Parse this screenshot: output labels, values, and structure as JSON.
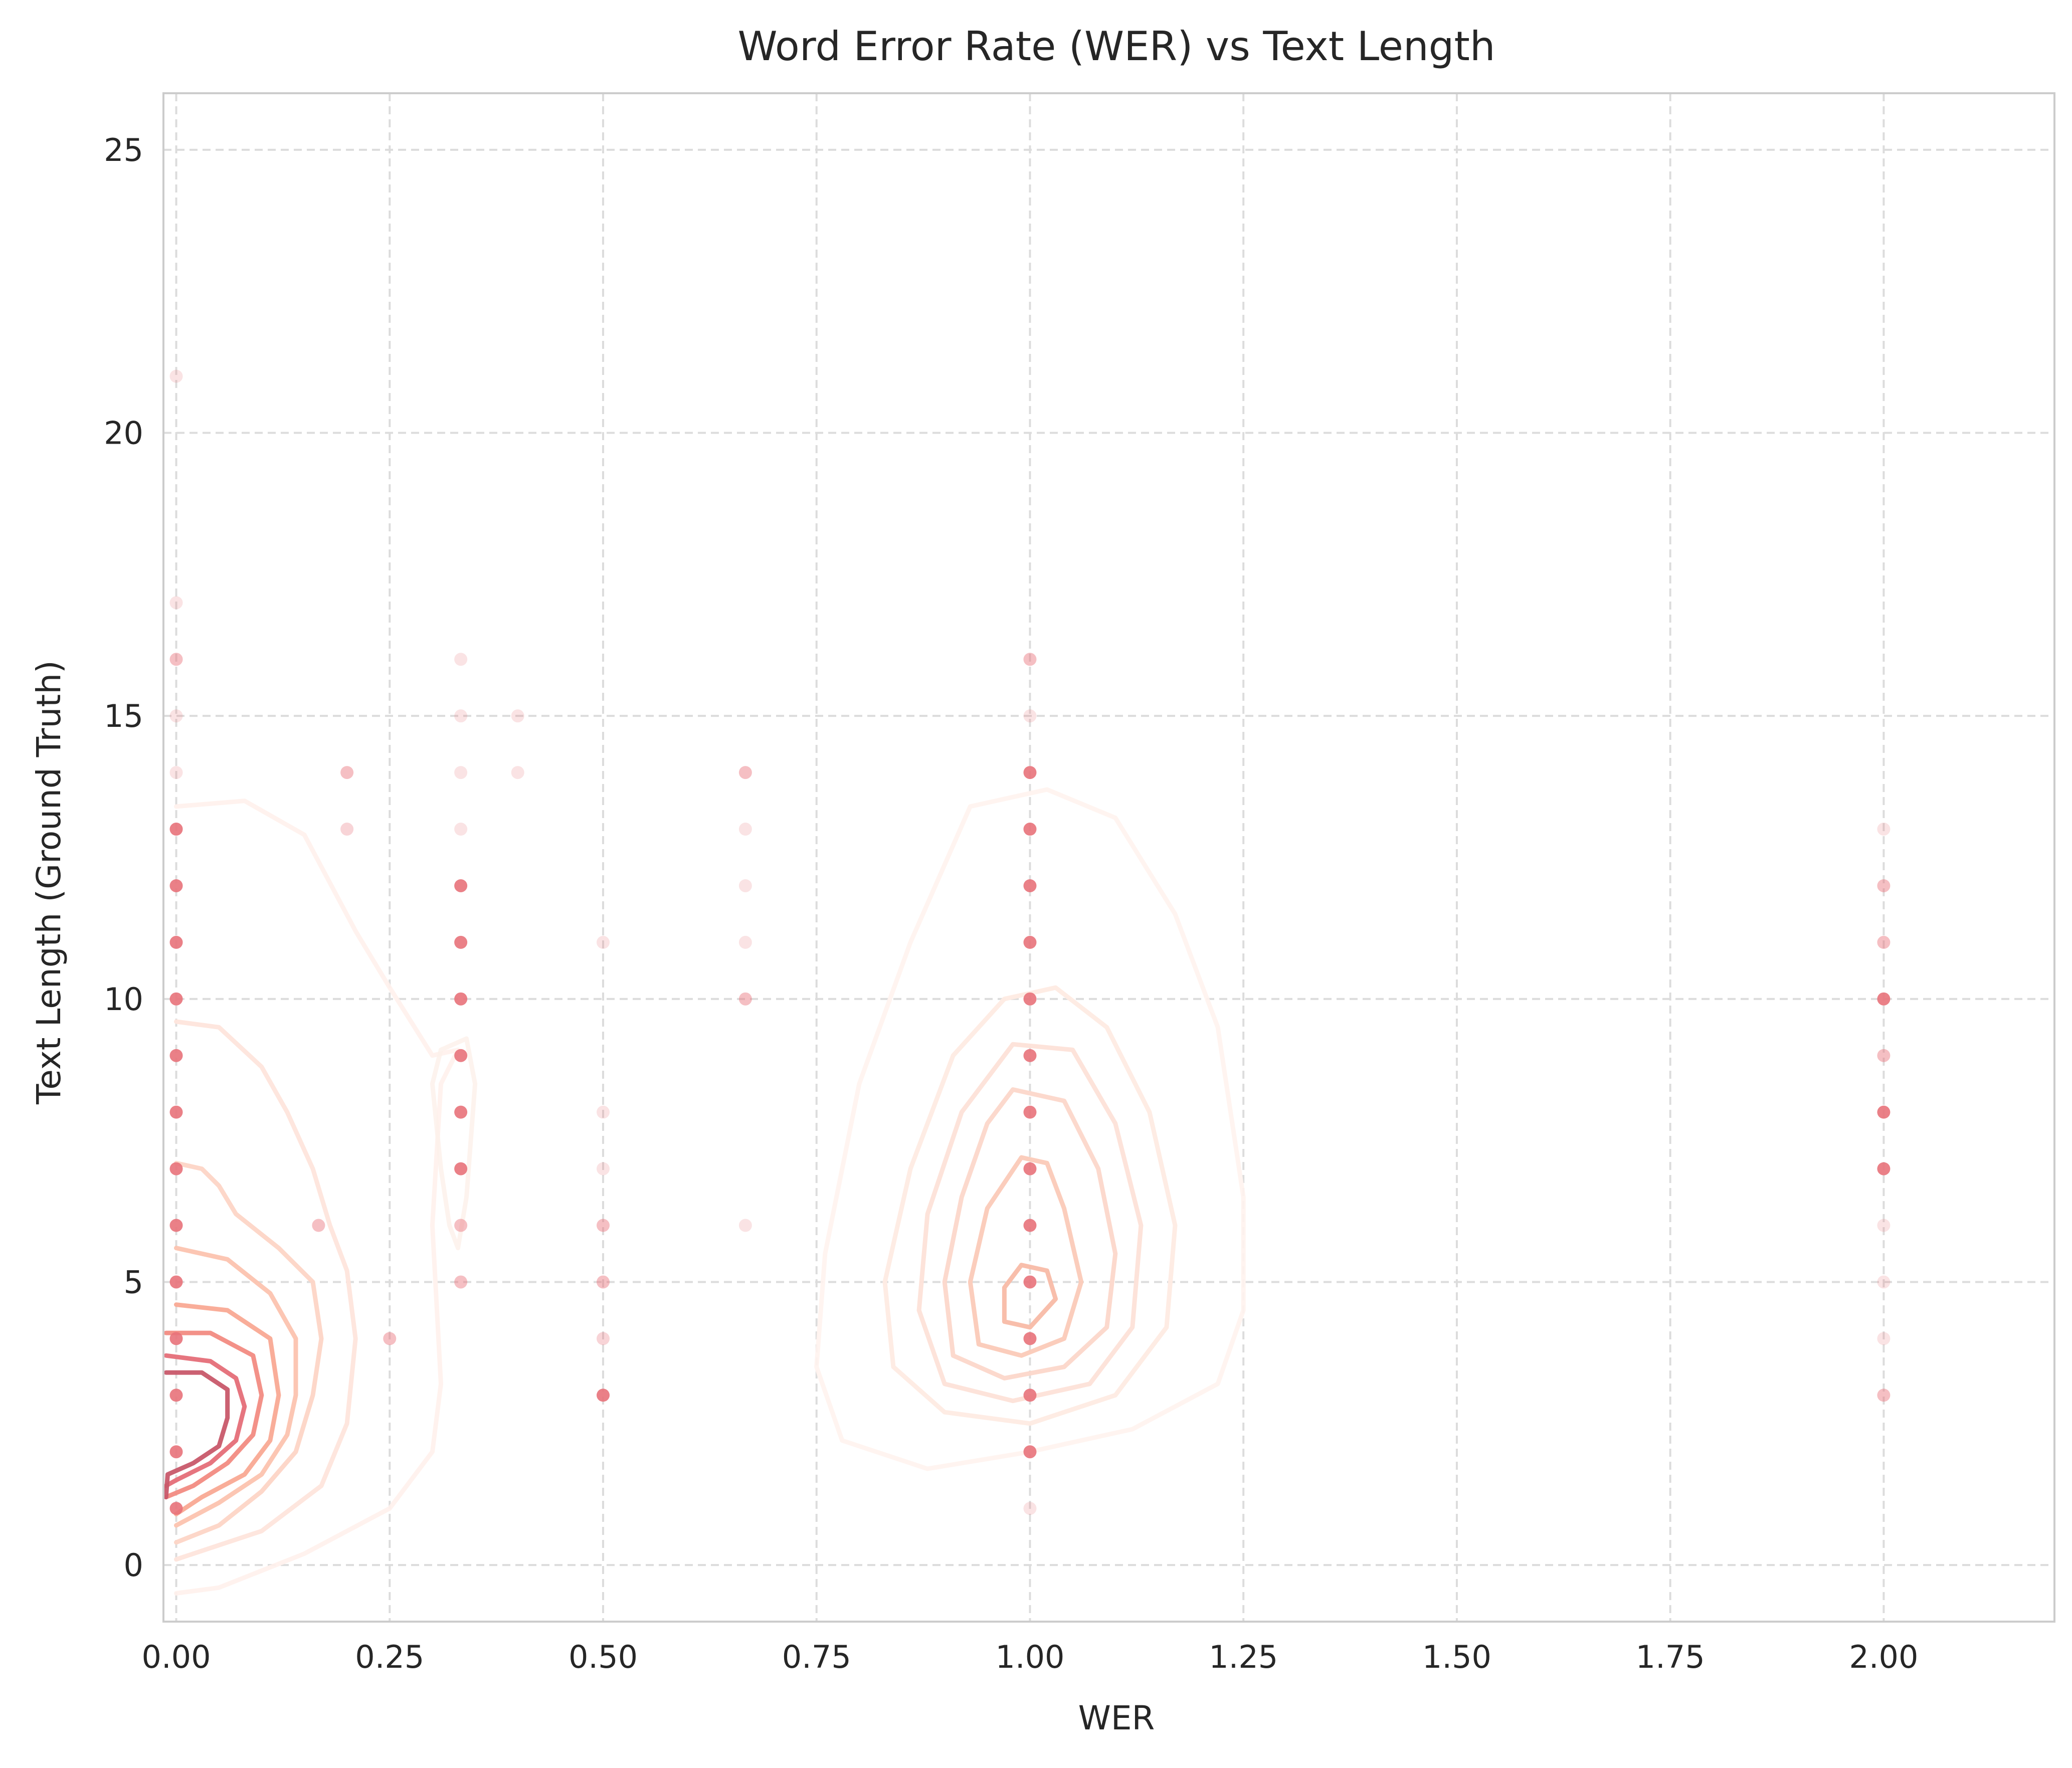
{
  "chart_data": {
    "type": "scatter",
    "title": "Word Error Rate (WER) vs Text Length",
    "xlabel": "WER",
    "ylabel": "Text Length (Ground Truth)",
    "xlim": [
      -0.015,
      2.2
    ],
    "ylim": [
      -1,
      26
    ],
    "xticks": [
      0.0,
      0.25,
      0.5,
      0.75,
      1.0,
      1.25,
      1.5,
      1.75,
      2.0
    ],
    "xtick_labels": [
      "0.00",
      "0.25",
      "0.50",
      "0.75",
      "1.00",
      "1.25",
      "1.50",
      "1.75",
      "2.00"
    ],
    "yticks": [
      0,
      5,
      10,
      15,
      20,
      25
    ],
    "ytick_labels": [
      "0",
      "5",
      "10",
      "15",
      "20",
      "25"
    ],
    "grid": true,
    "grid_style": "dashed",
    "point_color": "#e8727a",
    "points": [
      {
        "x": 0.0,
        "y": 21,
        "alpha": 0.2
      },
      {
        "x": 0.0,
        "y": 17,
        "alpha": 0.2
      },
      {
        "x": 0.0,
        "y": 16,
        "alpha": 0.45
      },
      {
        "x": 0.0,
        "y": 15,
        "alpha": 0.2
      },
      {
        "x": 0.0,
        "y": 14,
        "alpha": 0.2
      },
      {
        "x": 0.0,
        "y": 13,
        "alpha": 0.9
      },
      {
        "x": 0.0,
        "y": 12,
        "alpha": 0.9
      },
      {
        "x": 0.0,
        "y": 11,
        "alpha": 0.9
      },
      {
        "x": 0.0,
        "y": 10,
        "alpha": 0.9
      },
      {
        "x": 0.0,
        "y": 9,
        "alpha": 0.9
      },
      {
        "x": 0.0,
        "y": 8,
        "alpha": 0.9
      },
      {
        "x": 0.0,
        "y": 7,
        "alpha": 0.9
      },
      {
        "x": 0.0,
        "y": 6,
        "alpha": 0.9
      },
      {
        "x": 0.0,
        "y": 5,
        "alpha": 0.9
      },
      {
        "x": 0.0,
        "y": 4,
        "alpha": 0.9
      },
      {
        "x": 0.0,
        "y": 3,
        "alpha": 0.9
      },
      {
        "x": 0.0,
        "y": 2,
        "alpha": 0.9
      },
      {
        "x": 0.0,
        "y": 1,
        "alpha": 0.9
      },
      {
        "x": 0.1667,
        "y": 6,
        "alpha": 0.45
      },
      {
        "x": 0.2,
        "y": 14,
        "alpha": 0.45
      },
      {
        "x": 0.2,
        "y": 13,
        "alpha": 0.3
      },
      {
        "x": 0.25,
        "y": 4,
        "alpha": 0.45
      },
      {
        "x": 0.3333,
        "y": 16,
        "alpha": 0.2
      },
      {
        "x": 0.3333,
        "y": 15,
        "alpha": 0.2
      },
      {
        "x": 0.3333,
        "y": 14,
        "alpha": 0.2
      },
      {
        "x": 0.3333,
        "y": 13,
        "alpha": 0.2
      },
      {
        "x": 0.3333,
        "y": 12,
        "alpha": 0.9
      },
      {
        "x": 0.3333,
        "y": 11,
        "alpha": 0.9
      },
      {
        "x": 0.3333,
        "y": 10,
        "alpha": 0.9
      },
      {
        "x": 0.3333,
        "y": 9,
        "alpha": 0.9
      },
      {
        "x": 0.3333,
        "y": 8,
        "alpha": 0.9
      },
      {
        "x": 0.3333,
        "y": 7,
        "alpha": 0.9
      },
      {
        "x": 0.3333,
        "y": 6,
        "alpha": 0.45
      },
      {
        "x": 0.3333,
        "y": 5,
        "alpha": 0.45
      },
      {
        "x": 0.4,
        "y": 15,
        "alpha": 0.2
      },
      {
        "x": 0.4,
        "y": 14,
        "alpha": 0.2
      },
      {
        "x": 0.5,
        "y": 11,
        "alpha": 0.2
      },
      {
        "x": 0.5,
        "y": 8,
        "alpha": 0.2
      },
      {
        "x": 0.5,
        "y": 7,
        "alpha": 0.2
      },
      {
        "x": 0.5,
        "y": 6,
        "alpha": 0.45
      },
      {
        "x": 0.5,
        "y": 5,
        "alpha": 0.45
      },
      {
        "x": 0.5,
        "y": 4,
        "alpha": 0.3
      },
      {
        "x": 0.5,
        "y": 3,
        "alpha": 0.9
      },
      {
        "x": 0.6667,
        "y": 14,
        "alpha": 0.45
      },
      {
        "x": 0.6667,
        "y": 13,
        "alpha": 0.2
      },
      {
        "x": 0.6667,
        "y": 12,
        "alpha": 0.2
      },
      {
        "x": 0.6667,
        "y": 11,
        "alpha": 0.2
      },
      {
        "x": 0.6667,
        "y": 10,
        "alpha": 0.45
      },
      {
        "x": 0.6667,
        "y": 6,
        "alpha": 0.2
      },
      {
        "x": 1.0,
        "y": 16,
        "alpha": 0.45
      },
      {
        "x": 1.0,
        "y": 15,
        "alpha": 0.2
      },
      {
        "x": 1.0,
        "y": 14,
        "alpha": 0.9
      },
      {
        "x": 1.0,
        "y": 13,
        "alpha": 0.9
      },
      {
        "x": 1.0,
        "y": 12,
        "alpha": 0.9
      },
      {
        "x": 1.0,
        "y": 11,
        "alpha": 0.9
      },
      {
        "x": 1.0,
        "y": 10,
        "alpha": 0.9
      },
      {
        "x": 1.0,
        "y": 9,
        "alpha": 0.9
      },
      {
        "x": 1.0,
        "y": 8,
        "alpha": 0.9
      },
      {
        "x": 1.0,
        "y": 7,
        "alpha": 0.9
      },
      {
        "x": 1.0,
        "y": 6,
        "alpha": 0.9
      },
      {
        "x": 1.0,
        "y": 5,
        "alpha": 0.9
      },
      {
        "x": 1.0,
        "y": 4,
        "alpha": 0.9
      },
      {
        "x": 1.0,
        "y": 3,
        "alpha": 0.9
      },
      {
        "x": 1.0,
        "y": 2,
        "alpha": 0.9
      },
      {
        "x": 1.0,
        "y": 1,
        "alpha": 0.2
      },
      {
        "x": 2.0,
        "y": 13,
        "alpha": 0.2
      },
      {
        "x": 2.0,
        "y": 12,
        "alpha": 0.45
      },
      {
        "x": 2.0,
        "y": 11,
        "alpha": 0.45
      },
      {
        "x": 2.0,
        "y": 10,
        "alpha": 0.9
      },
      {
        "x": 2.0,
        "y": 9,
        "alpha": 0.45
      },
      {
        "x": 2.0,
        "y": 8,
        "alpha": 0.9
      },
      {
        "x": 2.0,
        "y": 7,
        "alpha": 0.9
      },
      {
        "x": 2.0,
        "y": 6,
        "alpha": 0.2
      },
      {
        "x": 2.0,
        "y": 5,
        "alpha": 0.2
      },
      {
        "x": 2.0,
        "y": 4,
        "alpha": 0.2
      },
      {
        "x": 2.0,
        "y": 3,
        "alpha": 0.45
      }
    ],
    "density_contours": [
      {
        "color": "#fff1ec",
        "opacity": 0.9,
        "points": [
          [
            0.0,
            13.4
          ],
          [
            0.08,
            13.5
          ],
          [
            0.15,
            12.9
          ],
          [
            0.21,
            11.2
          ],
          [
            0.25,
            10.2
          ],
          [
            0.3,
            9.0
          ],
          [
            0.33,
            9.1
          ],
          [
            0.31,
            8.5
          ],
          [
            0.3,
            6.0
          ],
          [
            0.31,
            3.2
          ],
          [
            0.3,
            2.0
          ],
          [
            0.25,
            1.0
          ],
          [
            0.15,
            0.2
          ],
          [
            0.05,
            -0.4
          ],
          [
            0.0,
            -0.5
          ]
        ]
      },
      {
        "color": "#fdf0ea",
        "opacity": 0.8,
        "points": [
          [
            0.34,
            9.3
          ],
          [
            0.31,
            9.1
          ],
          [
            0.3,
            8.5
          ],
          [
            0.31,
            7.0
          ],
          [
            0.32,
            6.0
          ],
          [
            0.33,
            5.6
          ],
          [
            0.34,
            6.5
          ],
          [
            0.35,
            8.5
          ],
          [
            0.34,
            9.3
          ]
        ]
      },
      {
        "color": "#fee5dc",
        "opacity": 0.95,
        "points": [
          [
            0.0,
            9.6
          ],
          [
            0.05,
            9.5
          ],
          [
            0.1,
            8.8
          ],
          [
            0.13,
            8.0
          ],
          [
            0.16,
            7.0
          ],
          [
            0.18,
            6.0
          ],
          [
            0.2,
            5.2
          ],
          [
            0.21,
            4.0
          ],
          [
            0.2,
            2.5
          ],
          [
            0.17,
            1.4
          ],
          [
            0.1,
            0.6
          ],
          [
            0.0,
            0.1
          ]
        ]
      },
      {
        "color": "#fdd5c6",
        "opacity": 0.95,
        "points": [
          [
            0.0,
            7.1
          ],
          [
            0.03,
            7.0
          ],
          [
            0.05,
            6.7
          ],
          [
            0.07,
            6.2
          ],
          [
            0.12,
            5.6
          ],
          [
            0.16,
            5.0
          ],
          [
            0.17,
            4.0
          ],
          [
            0.16,
            3.0
          ],
          [
            0.14,
            2.0
          ],
          [
            0.1,
            1.3
          ],
          [
            0.05,
            0.7
          ],
          [
            0.0,
            0.4
          ]
        ]
      },
      {
        "color": "#fcc3af",
        "opacity": 0.95,
        "points": [
          [
            0.0,
            5.6
          ],
          [
            0.06,
            5.4
          ],
          [
            0.11,
            4.8
          ],
          [
            0.14,
            4.0
          ],
          [
            0.14,
            3.0
          ],
          [
            0.13,
            2.3
          ],
          [
            0.1,
            1.6
          ],
          [
            0.05,
            1.1
          ],
          [
            0.0,
            0.7
          ]
        ]
      },
      {
        "color": "#f9a994",
        "opacity": 0.95,
        "points": [
          [
            0.0,
            4.6
          ],
          [
            0.06,
            4.5
          ],
          [
            0.11,
            4.0
          ],
          [
            0.12,
            3.0
          ],
          [
            0.11,
            2.2
          ],
          [
            0.08,
            1.6
          ],
          [
            0.03,
            1.2
          ],
          [
            0.0,
            0.9
          ]
        ]
      },
      {
        "color": "#f28b82",
        "opacity": 0.95,
        "points": [
          [
            -0.012,
            4.1
          ],
          [
            0.04,
            4.1
          ],
          [
            0.09,
            3.7
          ],
          [
            0.1,
            3.0
          ],
          [
            0.09,
            2.3
          ],
          [
            0.06,
            1.8
          ],
          [
            0.02,
            1.4
          ],
          [
            -0.012,
            1.2
          ]
        ]
      },
      {
        "color": "#e56e78",
        "opacity": 0.95,
        "points": [
          [
            -0.012,
            3.7
          ],
          [
            0.04,
            3.6
          ],
          [
            0.07,
            3.3
          ],
          [
            0.08,
            2.8
          ],
          [
            0.07,
            2.2
          ],
          [
            0.04,
            1.8
          ],
          [
            0.0,
            1.5
          ],
          [
            -0.012,
            1.4
          ]
        ]
      },
      {
        "color": "#c8586a",
        "opacity": 0.95,
        "points": [
          [
            -0.012,
            3.4
          ],
          [
            0.03,
            3.4
          ],
          [
            0.06,
            3.1
          ],
          [
            0.06,
            2.6
          ],
          [
            0.05,
            2.1
          ],
          [
            0.02,
            1.8
          ],
          [
            -0.01,
            1.6
          ],
          [
            -0.012,
            1.2
          ]
        ]
      },
      {
        "color": "#fff3ee",
        "opacity": 0.9,
        "points": [
          [
            0.93,
            13.4
          ],
          [
            1.02,
            13.7
          ],
          [
            1.1,
            13.2
          ],
          [
            1.17,
            11.5
          ],
          [
            1.22,
            9.5
          ],
          [
            1.25,
            6.5
          ],
          [
            1.25,
            4.5
          ],
          [
            1.22,
            3.2
          ],
          [
            1.12,
            2.4
          ],
          [
            1.0,
            2.0
          ],
          [
            0.88,
            1.7
          ],
          [
            0.78,
            2.2
          ],
          [
            0.75,
            3.5
          ],
          [
            0.76,
            5.5
          ],
          [
            0.8,
            8.5
          ],
          [
            0.86,
            11.0
          ],
          [
            0.93,
            13.4
          ]
        ]
      },
      {
        "color": "#feebe3",
        "opacity": 0.95,
        "points": [
          [
            0.97,
            10.0
          ],
          [
            1.03,
            10.2
          ],
          [
            1.09,
            9.5
          ],
          [
            1.14,
            8.0
          ],
          [
            1.17,
            6.0
          ],
          [
            1.16,
            4.2
          ],
          [
            1.1,
            3.0
          ],
          [
            1.0,
            2.5
          ],
          [
            0.9,
            2.7
          ],
          [
            0.84,
            3.5
          ],
          [
            0.83,
            5.0
          ],
          [
            0.86,
            7.0
          ],
          [
            0.91,
            9.0
          ],
          [
            0.97,
            10.0
          ]
        ]
      },
      {
        "color": "#fde2d8",
        "opacity": 0.95,
        "points": [
          [
            0.98,
            9.2
          ],
          [
            1.05,
            9.1
          ],
          [
            1.1,
            7.8
          ],
          [
            1.13,
            6.0
          ],
          [
            1.12,
            4.2
          ],
          [
            1.07,
            3.2
          ],
          [
            0.98,
            2.9
          ],
          [
            0.9,
            3.2
          ],
          [
            0.87,
            4.5
          ],
          [
            0.88,
            6.2
          ],
          [
            0.92,
            8.0
          ],
          [
            0.98,
            9.2
          ]
        ]
      },
      {
        "color": "#fcd7ca",
        "opacity": 0.95,
        "points": [
          [
            0.98,
            8.4
          ],
          [
            1.04,
            8.2
          ],
          [
            1.08,
            7.0
          ],
          [
            1.1,
            5.5
          ],
          [
            1.09,
            4.2
          ],
          [
            1.04,
            3.5
          ],
          [
            0.97,
            3.3
          ],
          [
            0.91,
            3.7
          ],
          [
            0.9,
            5.0
          ],
          [
            0.92,
            6.5
          ],
          [
            0.95,
            7.8
          ],
          [
            0.98,
            8.4
          ]
        ]
      },
      {
        "color": "#fbcab8",
        "opacity": 0.95,
        "points": [
          [
            0.99,
            7.2
          ],
          [
            1.02,
            7.1
          ],
          [
            1.04,
            6.3
          ],
          [
            1.06,
            5.0
          ],
          [
            1.04,
            4.0
          ],
          [
            0.99,
            3.7
          ],
          [
            0.94,
            3.9
          ],
          [
            0.93,
            5.0
          ],
          [
            0.95,
            6.3
          ],
          [
            0.99,
            7.2
          ]
        ]
      },
      {
        "color": "#f8bba6",
        "opacity": 0.95,
        "points": [
          [
            0.99,
            5.3
          ],
          [
            1.02,
            5.2
          ],
          [
            1.03,
            4.7
          ],
          [
            1.0,
            4.2
          ],
          [
            0.97,
            4.3
          ],
          [
            0.97,
            4.9
          ],
          [
            0.99,
            5.3
          ]
        ]
      }
    ]
  }
}
